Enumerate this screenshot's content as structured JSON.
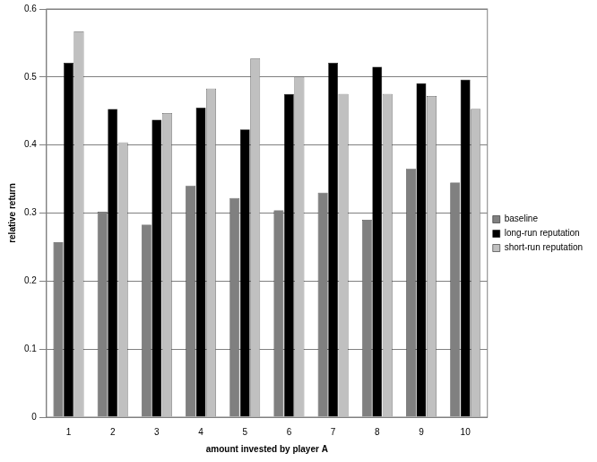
{
  "chart_data": {
    "type": "bar",
    "x_label": "amount invested by player A",
    "y_label": "relative return",
    "categories": [
      "1",
      "2",
      "3",
      "4",
      "5",
      "6",
      "7",
      "8",
      "9",
      "10"
    ],
    "series": [
      {
        "name": "baseline",
        "color": "#808080",
        "values": [
          0.257,
          0.302,
          0.283,
          0.34,
          0.322,
          0.304,
          0.33,
          0.29,
          0.365,
          0.345
        ]
      },
      {
        "name": "long-run reputation",
        "color": "#000000",
        "values": [
          0.521,
          0.453,
          0.437,
          0.455,
          0.423,
          0.475,
          0.521,
          0.515,
          0.491,
          0.496
        ]
      },
      {
        "name": "short-run reputation",
        "color": "#c0c0c0",
        "values": [
          0.567,
          0.404,
          0.447,
          0.483,
          0.527,
          0.5,
          0.475,
          0.475,
          0.472,
          0.453
        ]
      }
    ],
    "ylim": [
      0,
      0.6
    ],
    "yticks": [
      0,
      0.1,
      0.2,
      0.3,
      0.4,
      0.5,
      0.6
    ],
    "grid": true,
    "legend": "right"
  }
}
